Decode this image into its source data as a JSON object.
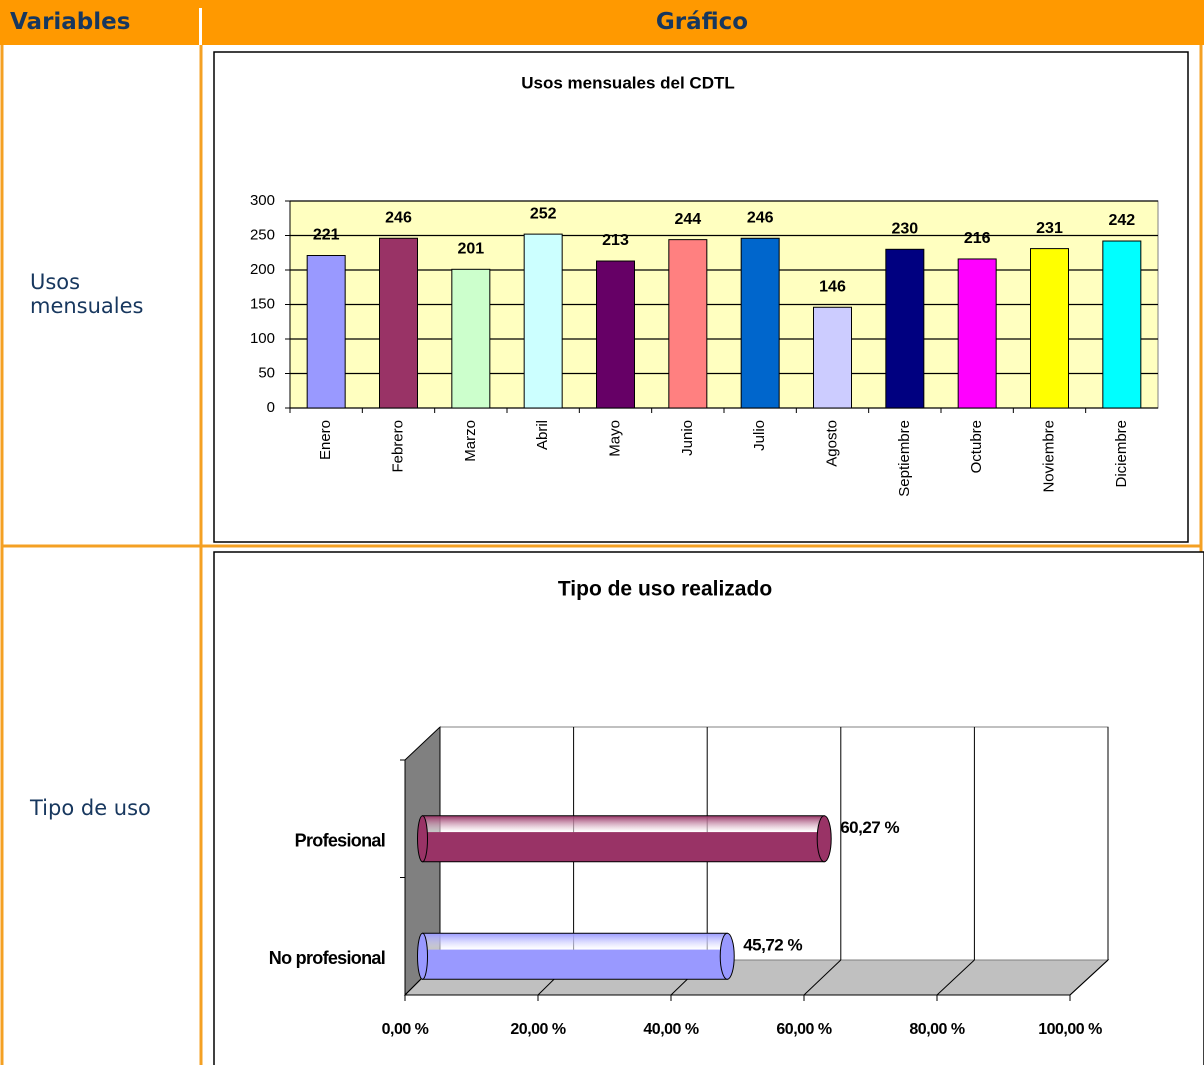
{
  "table": {
    "headers": [
      "Variables",
      "Gráfico"
    ],
    "rows": [
      {
        "variable": "Usos mensuales",
        "chart": {
          "type": "bar",
          "title": "Usos mensuales del CDTL",
          "categories": [
            "Enero",
            "Febrero",
            "Marzo",
            "Abril",
            "Mayo",
            "Junio",
            "Julio",
            "Agosto",
            "Septiembre",
            "Octubre",
            "Noviembre",
            "Diciembre"
          ],
          "values": [
            221,
            246,
            201,
            252,
            213,
            244,
            246,
            146,
            230,
            216,
            231,
            242
          ],
          "colors": [
            "#9999ff",
            "#993366",
            "#ccffcc",
            "#ccffff",
            "#660066",
            "#ff8080",
            "#0066cc",
            "#ccccff",
            "#000080",
            "#ff00ff",
            "#ffff00",
            "#00ffff"
          ],
          "ylim": [
            0,
            300
          ],
          "yticks": [
            0,
            50,
            100,
            150,
            200,
            250,
            300
          ],
          "grid": true
        }
      },
      {
        "variable": "Tipo de uso",
        "chart": {
          "type": "barh",
          "title": "Tipo de uso realizado",
          "categories": [
            "Profesional",
            "No profesional"
          ],
          "values": [
            60.27,
            45.72
          ],
          "value_labels": [
            "60,27 %",
            "45,72 %"
          ],
          "colors": [
            "#993366",
            "#9999ff"
          ],
          "xlim": [
            0,
            100
          ],
          "xticks": [
            {
              "value": 0,
              "label": "0,00 %"
            },
            {
              "value": 20,
              "label": "20,00 %"
            },
            {
              "value": 40,
              "label": "40,00 %"
            },
            {
              "value": 60,
              "label": "60,00 %"
            },
            {
              "value": 80,
              "label": "80,00 %"
            },
            {
              "value": 100,
              "label": "100,00 %"
            }
          ],
          "grid": true
        }
      }
    ]
  }
}
